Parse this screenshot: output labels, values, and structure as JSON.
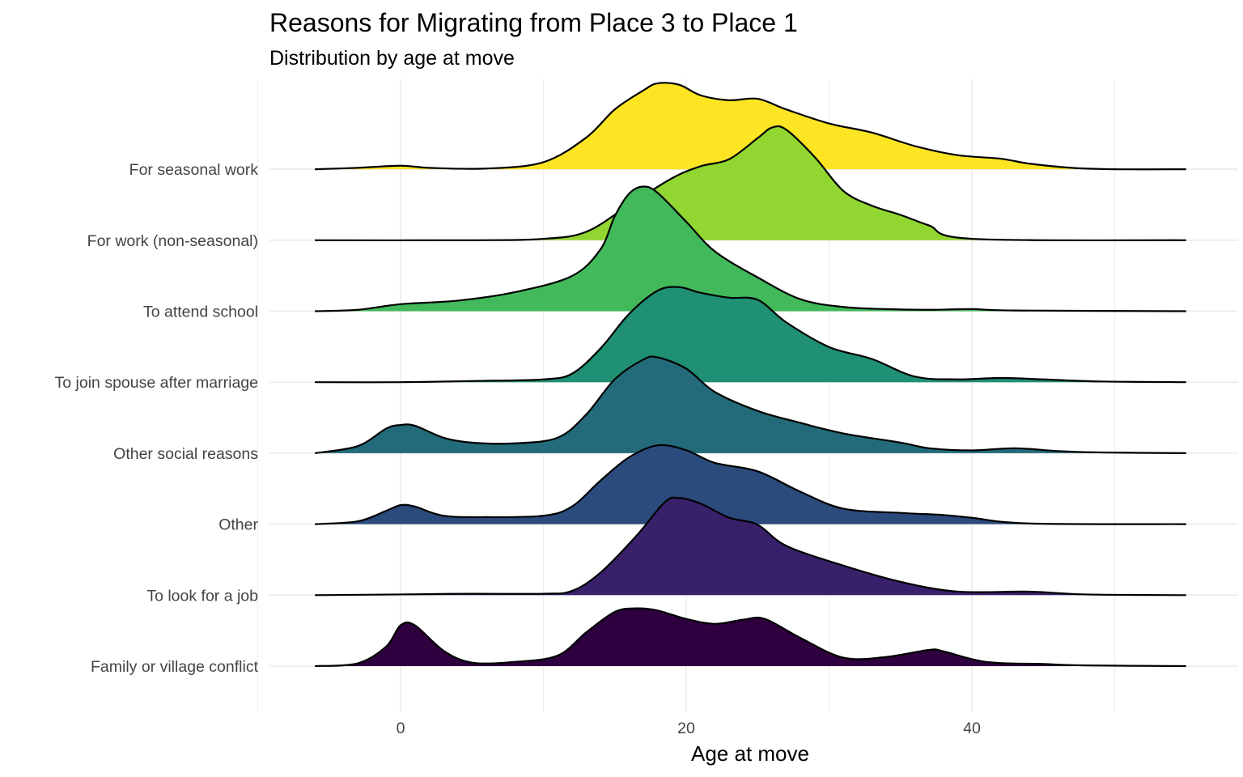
{
  "chart_data": {
    "type": "ridgeline",
    "title": "Reasons for Migrating from Place 3 to Place 1",
    "subtitle": "Distribution by age at move",
    "xlabel": "Age at move",
    "ylabel": "",
    "xlim": [
      -12.5,
      55.5
    ],
    "x_ticks": [
      0,
      20,
      40
    ],
    "grid": true,
    "legend": "none",
    "x_support": [
      -6,
      55
    ],
    "categories": [
      "Family or village conflict",
      "To look for a job",
      "Other",
      "Other social reasons",
      "To join spouse after marriage",
      "To attend school",
      "For work (non-seasonal)",
      "For seasonal work"
    ],
    "series": [
      {
        "category": "Family or village conflict",
        "color": "#2e003f",
        "points": [
          [
            -6,
            0
          ],
          [
            -3,
            0.04
          ],
          [
            -1,
            0.28
          ],
          [
            0,
            0.58
          ],
          [
            1,
            0.58
          ],
          [
            3,
            0.22
          ],
          [
            5,
            0.05
          ],
          [
            8,
            0.06
          ],
          [
            11,
            0.15
          ],
          [
            13,
            0.48
          ],
          [
            15,
            0.77
          ],
          [
            16.5,
            0.82
          ],
          [
            18,
            0.79
          ],
          [
            20,
            0.67
          ],
          [
            22,
            0.6
          ],
          [
            24,
            0.66
          ],
          [
            25.5,
            0.67
          ],
          [
            28,
            0.4
          ],
          [
            31,
            0.12
          ],
          [
            34,
            0.13
          ],
          [
            37,
            0.23
          ],
          [
            38,
            0.21
          ],
          [
            41,
            0.06
          ],
          [
            45,
            0.03
          ],
          [
            48,
            0.01
          ],
          [
            55,
            0
          ]
        ]
      },
      {
        "category": "To look for a job",
        "color": "#38206b",
        "points": [
          [
            -6,
            0
          ],
          [
            0,
            0.01
          ],
          [
            5,
            0.02
          ],
          [
            10,
            0.02
          ],
          [
            12,
            0.06
          ],
          [
            14,
            0.32
          ],
          [
            16.5,
            0.84
          ],
          [
            18.5,
            1.32
          ],
          [
            19.5,
            1.38
          ],
          [
            21,
            1.3
          ],
          [
            23,
            1.1
          ],
          [
            25,
            1.0
          ],
          [
            27,
            0.7
          ],
          [
            31,
            0.42
          ],
          [
            35,
            0.19
          ],
          [
            39,
            0.05
          ],
          [
            44,
            0.05
          ],
          [
            48,
            0.01
          ],
          [
            55,
            0
          ]
        ]
      },
      {
        "category": "Other",
        "color": "#2b4b7c",
        "points": [
          [
            -6,
            0
          ],
          [
            -3,
            0.04
          ],
          [
            -1,
            0.19
          ],
          [
            0,
            0.27
          ],
          [
            1,
            0.25
          ],
          [
            3,
            0.12
          ],
          [
            6,
            0.1
          ],
          [
            10,
            0.12
          ],
          [
            12,
            0.25
          ],
          [
            14,
            0.62
          ],
          [
            16,
            0.95
          ],
          [
            18,
            1.12
          ],
          [
            20,
            1.05
          ],
          [
            22,
            0.87
          ],
          [
            25,
            0.75
          ],
          [
            28,
            0.46
          ],
          [
            31,
            0.22
          ],
          [
            35,
            0.16
          ],
          [
            38,
            0.13
          ],
          [
            40,
            0.09
          ],
          [
            44,
            0.01
          ],
          [
            55,
            0
          ]
        ]
      },
      {
        "category": "Other social reasons",
        "color": "#236b7a",
        "points": [
          [
            -6,
            0
          ],
          [
            -3,
            0.1
          ],
          [
            -1,
            0.35
          ],
          [
            0,
            0.4
          ],
          [
            1,
            0.39
          ],
          [
            3,
            0.22
          ],
          [
            5,
            0.15
          ],
          [
            8,
            0.14
          ],
          [
            11,
            0.22
          ],
          [
            13,
            0.55
          ],
          [
            15,
            1.05
          ],
          [
            17,
            1.33
          ],
          [
            18,
            1.36
          ],
          [
            20,
            1.2
          ],
          [
            22,
            0.87
          ],
          [
            25,
            0.6
          ],
          [
            28,
            0.43
          ],
          [
            31,
            0.28
          ],
          [
            35,
            0.15
          ],
          [
            37,
            0.07
          ],
          [
            40,
            0.04
          ],
          [
            43,
            0.07
          ],
          [
            46,
            0.03
          ],
          [
            49,
            0.01
          ],
          [
            55,
            0
          ]
        ]
      },
      {
        "category": "To join spouse after marriage",
        "color": "#209075",
        "points": [
          [
            -6,
            0
          ],
          [
            0,
            0.0
          ],
          [
            6,
            0.02
          ],
          [
            10,
            0.04
          ],
          [
            12,
            0.12
          ],
          [
            14,
            0.48
          ],
          [
            16,
            0.97
          ],
          [
            18,
            1.3
          ],
          [
            19.5,
            1.35
          ],
          [
            21,
            1.27
          ],
          [
            23,
            1.2
          ],
          [
            25,
            1.17
          ],
          [
            27,
            0.85
          ],
          [
            30,
            0.5
          ],
          [
            33,
            0.33
          ],
          [
            36,
            0.08
          ],
          [
            39,
            0.04
          ],
          [
            42,
            0.06
          ],
          [
            45,
            0.04
          ],
          [
            49,
            0.01
          ],
          [
            55,
            0
          ]
        ]
      },
      {
        "category": "To attend school",
        "color": "#42ba5b",
        "points": [
          [
            -6,
            0
          ],
          [
            -3,
            0.02
          ],
          [
            0,
            0.1
          ],
          [
            4,
            0.15
          ],
          [
            8,
            0.27
          ],
          [
            12,
            0.5
          ],
          [
            14,
            0.88
          ],
          [
            15,
            1.35
          ],
          [
            16,
            1.67
          ],
          [
            17,
            1.77
          ],
          [
            18,
            1.68
          ],
          [
            20,
            1.27
          ],
          [
            22,
            0.85
          ],
          [
            25,
            0.48
          ],
          [
            28,
            0.17
          ],
          [
            31,
            0.06
          ],
          [
            34,
            0.03
          ],
          [
            37,
            0.02
          ],
          [
            40,
            0.03
          ],
          [
            43,
            0.01
          ],
          [
            55,
            0
          ]
        ]
      },
      {
        "category": "For work (non-seasonal)",
        "color": "#91d631",
        "points": [
          [
            -6,
            0
          ],
          [
            5,
            0.0
          ],
          [
            10,
            0.02
          ],
          [
            13,
            0.12
          ],
          [
            16,
            0.5
          ],
          [
            19,
            0.88
          ],
          [
            21,
            1.05
          ],
          [
            23,
            1.15
          ],
          [
            25,
            1.45
          ],
          [
            26,
            1.6
          ],
          [
            27,
            1.57
          ],
          [
            29,
            1.18
          ],
          [
            31,
            0.7
          ],
          [
            33,
            0.49
          ],
          [
            35,
            0.36
          ],
          [
            37,
            0.21
          ],
          [
            40,
            0.02
          ],
          [
            55,
            0
          ]
        ]
      },
      {
        "category": "For seasonal work",
        "color": "#fde524",
        "points": [
          [
            -6,
            0
          ],
          [
            -3,
            0.02
          ],
          [
            0,
            0.05
          ],
          [
            2,
            0.02
          ],
          [
            6,
            0.01
          ],
          [
            10,
            0.1
          ],
          [
            13,
            0.45
          ],
          [
            15,
            0.85
          ],
          [
            17,
            1.12
          ],
          [
            18,
            1.22
          ],
          [
            19.5,
            1.2
          ],
          [
            21,
            1.05
          ],
          [
            23,
            0.98
          ],
          [
            25,
            1.0
          ],
          [
            27,
            0.85
          ],
          [
            30,
            0.65
          ],
          [
            33,
            0.52
          ],
          [
            36,
            0.33
          ],
          [
            39,
            0.2
          ],
          [
            42,
            0.15
          ],
          [
            44,
            0.08
          ],
          [
            47,
            0.02
          ],
          [
            50,
            0.0
          ],
          [
            55,
            0
          ]
        ]
      }
    ]
  }
}
